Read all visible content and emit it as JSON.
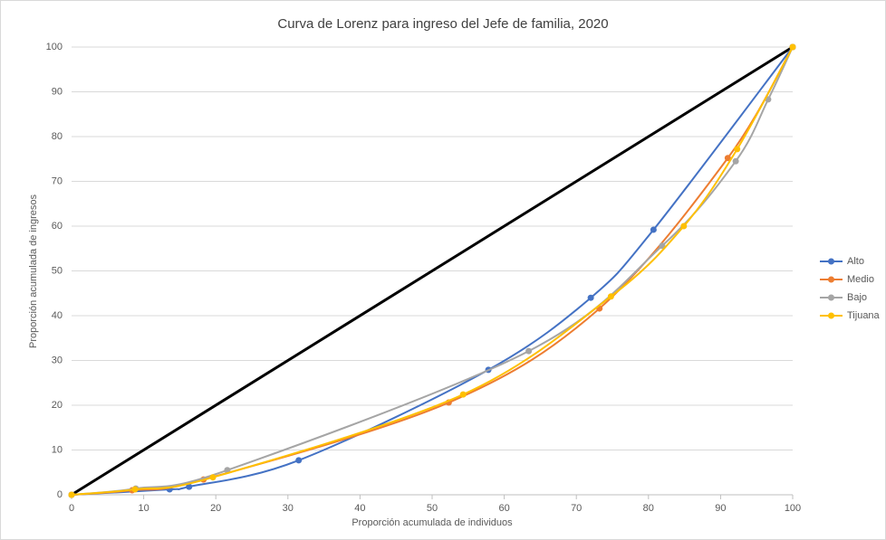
{
  "chart_data": {
    "type": "scatter_smooth",
    "title": "Curva de Lorenz para ingreso del Jefe de familia, 2020",
    "x_label": "Proporción acumulada de individuos",
    "y_label": "Proporción acumulada de ingresos",
    "xlim": [
      0,
      100
    ],
    "xticks": [
      0,
      10,
      20,
      30,
      40,
      50,
      60,
      70,
      80,
      90,
      100
    ],
    "ylim": [
      0,
      100
    ],
    "yticks": [
      0,
      10,
      20,
      30,
      40,
      50,
      60,
      70,
      80,
      90,
      100
    ],
    "grid": true,
    "legend": "right",
    "reference_line": {
      "x": [
        0,
        100
      ],
      "values": [
        0,
        100
      ],
      "color": "#000000"
    },
    "series": [
      {
        "name": "Alto",
        "color": "#4472c4",
        "x": [
          0,
          13.6,
          16.3,
          31.5,
          57.8,
          72,
          80.7,
          100
        ],
        "values": [
          0,
          1.2,
          1.8,
          7.7,
          27.9,
          44,
          59.2,
          100
        ]
      },
      {
        "name": "Medio",
        "color": "#ed7d31",
        "x": [
          0,
          8.4,
          18.3,
          52.3,
          73.2,
          91,
          100
        ],
        "values": [
          0,
          1,
          3.4,
          20.6,
          41.6,
          75.2,
          100
        ]
      },
      {
        "name": "Bajo",
        "color": "#a5a5a5",
        "x": [
          0,
          8.9,
          21.6,
          63.4,
          81.9,
          92.1,
          96.6,
          100
        ],
        "values": [
          0,
          1.4,
          5.5,
          32.1,
          55.6,
          74.5,
          88.3,
          100
        ]
      },
      {
        "name": "Tijuana",
        "color": "#ffc000",
        "x": [
          0,
          8.8,
          19.6,
          54.3,
          74.8,
          84.9,
          92.3,
          100
        ],
        "values": [
          0,
          1.2,
          3.9,
          22.4,
          44.3,
          60,
          77.2,
          100
        ]
      }
    ]
  }
}
